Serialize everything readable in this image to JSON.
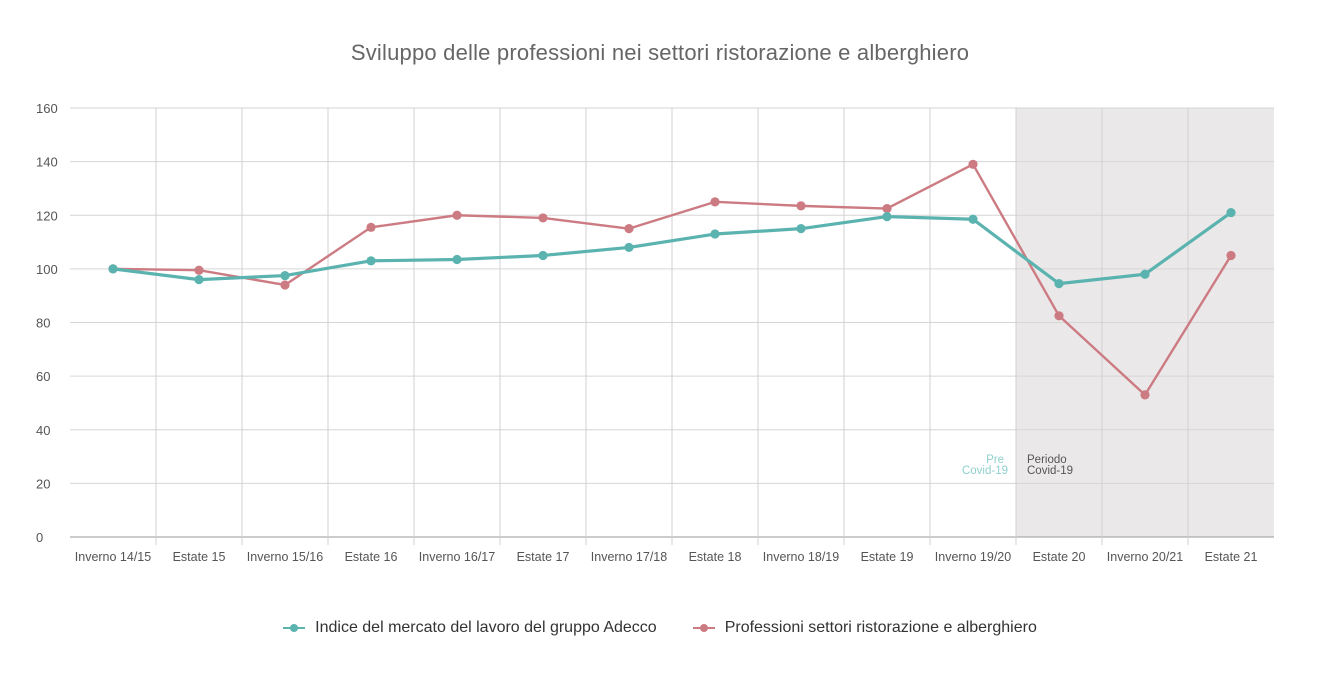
{
  "chart_data": {
    "type": "line",
    "title": "Sviluppo delle professioni nei settori ristorazione e alberghiero",
    "categories": [
      "Inverno  14/15",
      "Estate 15",
      "Inverno 15/16",
      "Estate 16",
      "Inverno 16/17",
      "Estate 17",
      "Inverno 17/18",
      "Estate 18",
      "Inverno 18/19",
      "Estate 19",
      "Inverno 19/20",
      "Estate 20",
      "Inverno 20/21",
      "Estate 21"
    ],
    "ylim": [
      0,
      160
    ],
    "yticks": [
      "0",
      "20",
      "40",
      "60",
      "80",
      "100",
      "120",
      "140",
      "160"
    ],
    "grid": true,
    "series": [
      {
        "name": "Indice del mercato del lavoro del gruppo Adecco",
        "color": "#5bb3b0",
        "values": [
          100,
          96,
          97.5,
          103,
          103.5,
          105,
          108,
          113,
          115,
          119.5,
          118.5,
          94.5,
          98,
          121
        ]
      },
      {
        "name": "Professioni settori ristorazione e alberghiero",
        "color": "#cc7b82",
        "values": [
          100,
          99.5,
          94,
          115.5,
          120,
          119,
          115,
          125,
          123.5,
          122.5,
          139,
          82.5,
          53,
          105
        ]
      }
    ],
    "annotations": {
      "pre_line1": "Pre",
      "pre_line2": "Covid-19",
      "covid_line1": "Periodo",
      "covid_line2": "Covid-19"
    },
    "shaded_region": {
      "from_category": "Estate 20",
      "to_category": "Estate 21",
      "color": "#ebe8e9"
    },
    "legend_position": "bottom-center"
  }
}
